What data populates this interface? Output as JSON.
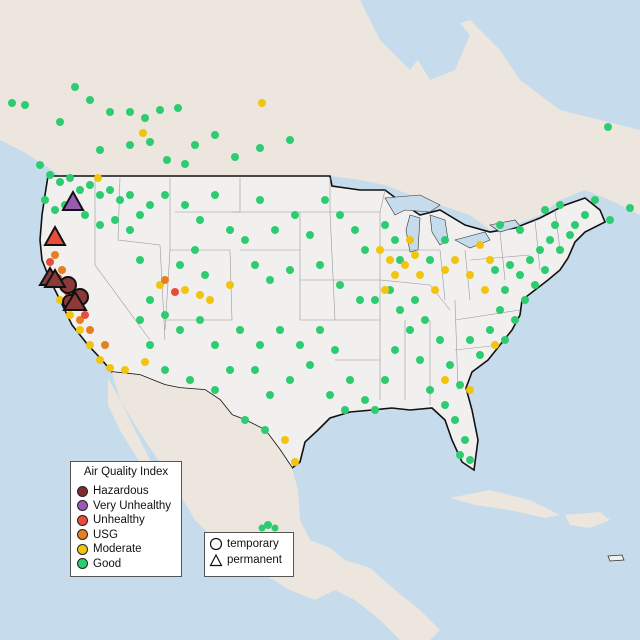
{
  "legend": {
    "title": "Air Quality Index",
    "items": [
      {
        "label": "Hazardous",
        "color": "#7e2c2c"
      },
      {
        "label": "Very Unhealthy",
        "color": "#9b59b6"
      },
      {
        "label": "Unhealthy",
        "color": "#e74c3c"
      },
      {
        "label": "USG",
        "color": "#e67e22"
      },
      {
        "label": "Moderate",
        "color": "#f1c40f"
      },
      {
        "label": "Good",
        "color": "#2ecc71"
      }
    ]
  },
  "site_types": {
    "temporary": "temporary",
    "permanent": "permanent"
  },
  "colors": {
    "water": "#c6dcec",
    "land": "#ede8e2",
    "us_land": "#f2f0ee"
  }
}
